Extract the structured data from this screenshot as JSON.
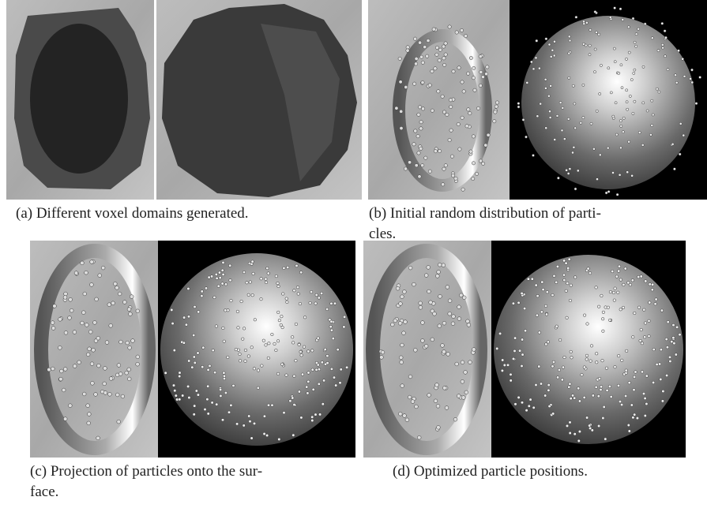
{
  "figure": {
    "panels": [
      {
        "caption_lines": [
          "(a) Different voxel domains generated."
        ]
      },
      {
        "caption_lines": [
          "(b) Initial random distribution of parti-",
          "cles."
        ]
      },
      {
        "caption_lines": [
          "(c) Projection of particles onto the sur-",
          "face."
        ]
      },
      {
        "caption_lines": [
          "(d) Optimized particle positions."
        ]
      }
    ]
  }
}
